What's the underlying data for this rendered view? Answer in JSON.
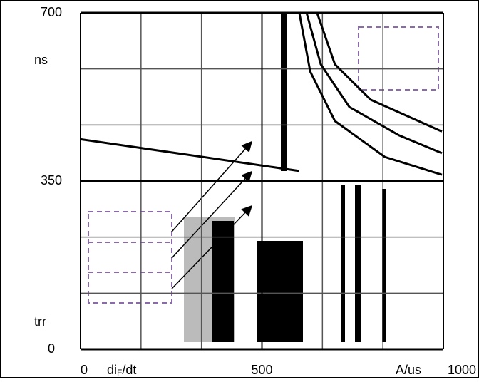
{
  "chart_data": {
    "type": "line",
    "y_labels": [
      "ns",
      "trr"
    ],
    "x_label": {
      "main": "di",
      "sub": "F",
      "rest": "/dt"
    },
    "x_unit": "A/us",
    "xlim": [
      0,
      1000
    ],
    "ylim": [
      0,
      700
    ],
    "xticks": [
      0,
      500,
      1000
    ],
    "yticks": [
      0,
      350,
      700
    ],
    "grid": true,
    "series": [
      {
        "color": "#000000",
        "x": [
          0,
          603
        ],
        "values": [
          437,
          371
        ]
      },
      {
        "color": "#000000",
        "x": [
          623,
          662,
          741,
          878,
          996
        ],
        "values": [
          700,
          593,
          504,
          445,
          408
        ]
      },
      {
        "color": "#000000",
        "x": [
          652,
          701,
          800,
          996
        ],
        "values": [
          700,
          593,
          519,
          453
        ]
      },
      {
        "color": "#000000",
        "x": [
          603,
          633,
          701,
          839,
          996
        ],
        "values": [
          700,
          578,
          475,
          400,
          363
        ]
      }
    ]
  }
}
